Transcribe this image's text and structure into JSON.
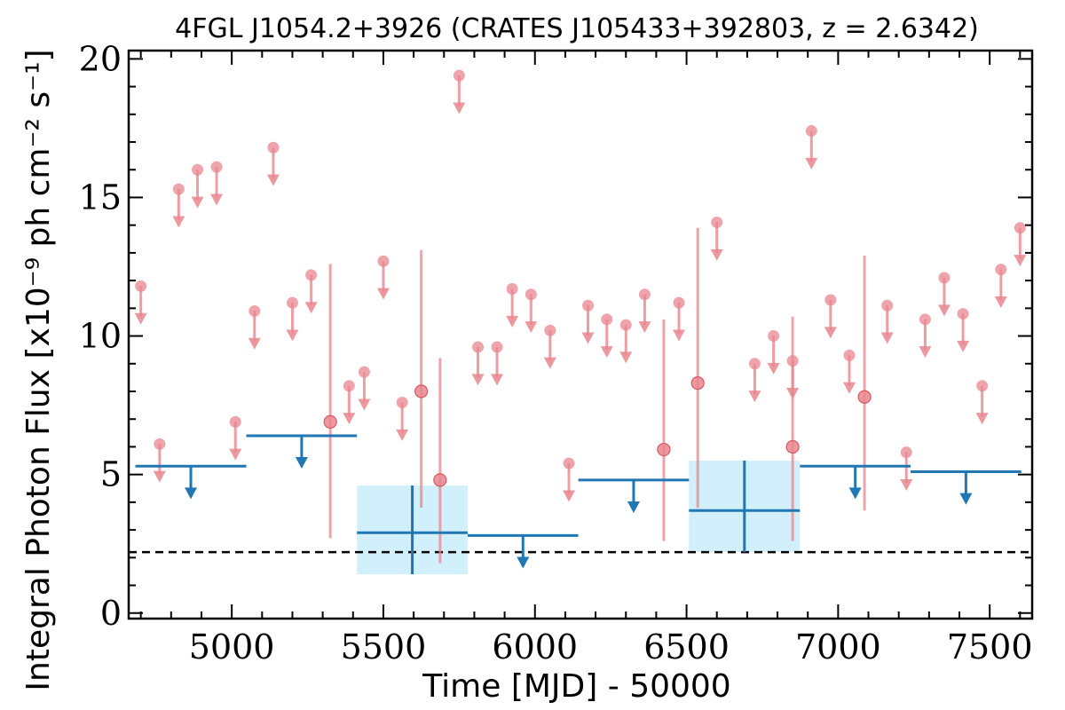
{
  "chart_data": {
    "type": "scatter",
    "title": "4FGL J1054.2+3926 (CRATES J105433+392803, z = 2.6342)",
    "xlabel": "Time [MJD] - 50000",
    "ylabel": "Integral Photon Flux [x10⁻⁹ ph cm⁻² s⁻¹]",
    "xlim": [
      4660,
      7640
    ],
    "ylim": [
      -0.2,
      20.3
    ],
    "xticks": [
      5000,
      5500,
      6000,
      6500,
      7000,
      7500
    ],
    "xtick_labels": [
      "5000",
      "5500",
      "6000",
      "6500",
      "7000",
      "7500"
    ],
    "yticks": [
      0,
      5,
      10,
      15,
      20
    ],
    "ytick_labels": [
      "0",
      "5",
      "10",
      "15",
      "20"
    ],
    "grid": false,
    "legend": "none",
    "colors": {
      "monthly": "#e8868e",
      "yearly": "#1f77b4",
      "yearly_band": "#d2effc",
      "reference_line": "#000000"
    },
    "reference_line": {
      "y": 2.2,
      "style": "dashed"
    },
    "monthly_upper_limits": [
      {
        "x": 4700,
        "y": 11.8
      },
      {
        "x": 4762,
        "y": 6.1
      },
      {
        "x": 4825,
        "y": 15.3
      },
      {
        "x": 4887,
        "y": 16.0
      },
      {
        "x": 4950,
        "y": 16.1
      },
      {
        "x": 5012,
        "y": 6.9
      },
      {
        "x": 5075,
        "y": 10.9
      },
      {
        "x": 5137,
        "y": 16.8
      },
      {
        "x": 5200,
        "y": 11.2
      },
      {
        "x": 5262,
        "y": 12.2
      },
      {
        "x": 5387,
        "y": 8.2
      },
      {
        "x": 5437,
        "y": 8.7
      },
      {
        "x": 5500,
        "y": 12.7
      },
      {
        "x": 5562,
        "y": 7.6
      },
      {
        "x": 5750,
        "y": 19.4
      },
      {
        "x": 5812,
        "y": 9.6
      },
      {
        "x": 5875,
        "y": 9.6
      },
      {
        "x": 5925,
        "y": 11.7
      },
      {
        "x": 5987,
        "y": 11.5
      },
      {
        "x": 6050,
        "y": 10.2
      },
      {
        "x": 6112,
        "y": 5.4
      },
      {
        "x": 6175,
        "y": 11.1
      },
      {
        "x": 6237,
        "y": 10.6
      },
      {
        "x": 6300,
        "y": 10.4
      },
      {
        "x": 6362,
        "y": 11.5
      },
      {
        "x": 6475,
        "y": 11.2
      },
      {
        "x": 6600,
        "y": 14.1
      },
      {
        "x": 6725,
        "y": 9.0
      },
      {
        "x": 6787,
        "y": 10.0
      },
      {
        "x": 6850,
        "y": 9.1
      },
      {
        "x": 6912,
        "y": 17.4
      },
      {
        "x": 6975,
        "y": 11.3
      },
      {
        "x": 7037,
        "y": 9.3
      },
      {
        "x": 7162,
        "y": 11.1
      },
      {
        "x": 7225,
        "y": 5.8
      },
      {
        "x": 7287,
        "y": 10.6
      },
      {
        "x": 7350,
        "y": 12.1
      },
      {
        "x": 7412,
        "y": 10.8
      },
      {
        "x": 7475,
        "y": 8.2
      },
      {
        "x": 7537,
        "y": 12.4
      },
      {
        "x": 7600,
        "y": 13.9
      }
    ],
    "monthly_detections": [
      {
        "x": 5325,
        "y": 6.9,
        "y_low": 2.7,
        "y_high": 12.6
      },
      {
        "x": 5625,
        "y": 8.0,
        "y_low": 3.8,
        "y_high": 13.1
      },
      {
        "x": 5687,
        "y": 4.8,
        "y_low": 1.8,
        "y_high": 9.2
      },
      {
        "x": 6425,
        "y": 5.9,
        "y_low": 2.6,
        "y_high": 10.6
      },
      {
        "x": 6537,
        "y": 8.3,
        "y_low": 3.8,
        "y_high": 13.9
      },
      {
        "x": 6850,
        "y": 6.0,
        "y_low": 2.6,
        "y_high": 10.7
      },
      {
        "x": 7087,
        "y": 7.8,
        "y_low": 3.7,
        "y_high": 12.9
      }
    ],
    "yearly_upper_limits": [
      {
        "x_start": 4682,
        "x_end": 5048,
        "y": 5.3
      },
      {
        "x_start": 5048,
        "x_end": 5413,
        "y": 6.4
      },
      {
        "x_start": 5778,
        "x_end": 6143,
        "y": 2.8
      },
      {
        "x_start": 6143,
        "x_end": 6508,
        "y": 4.8
      },
      {
        "x_start": 6874,
        "x_end": 7239,
        "y": 5.3
      },
      {
        "x_start": 7239,
        "x_end": 7604,
        "y": 5.1
      }
    ],
    "yearly_detections": [
      {
        "x_start": 5413,
        "x_end": 5778,
        "y": 2.9,
        "y_low": 1.4,
        "y_high": 4.6
      },
      {
        "x_start": 6508,
        "x_end": 6874,
        "y": 3.7,
        "y_low": 2.2,
        "y_high": 5.5
      }
    ]
  }
}
